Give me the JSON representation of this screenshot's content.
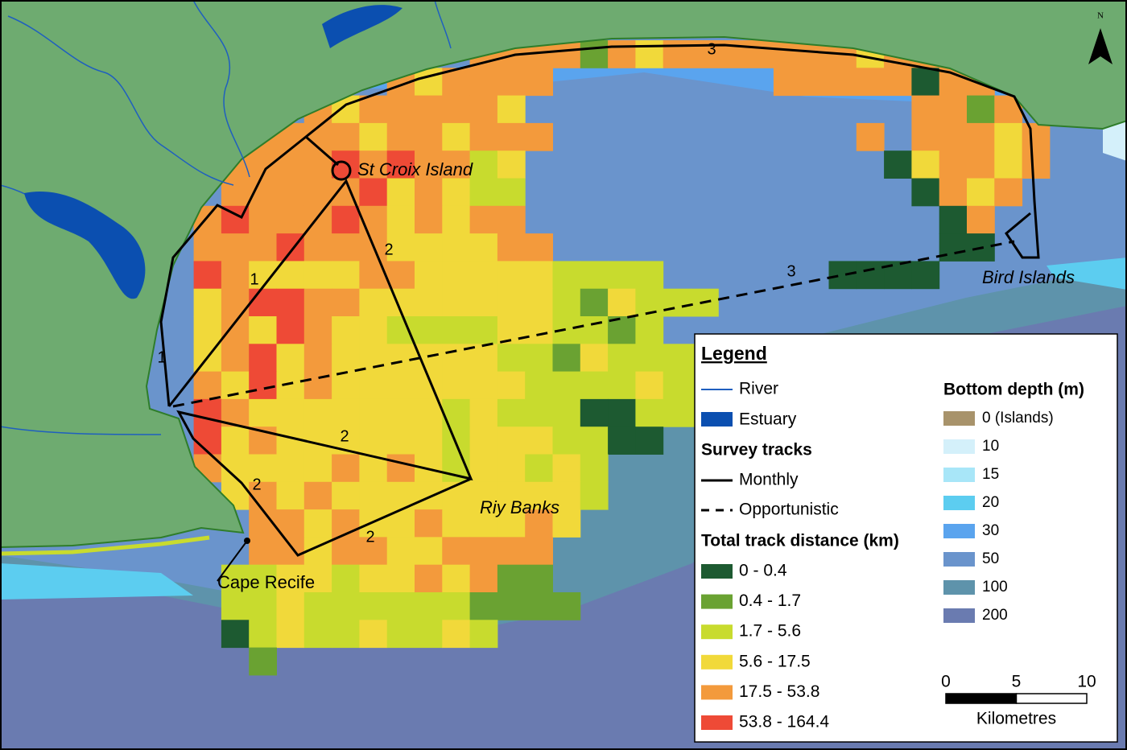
{
  "map": {
    "north": "N",
    "places": [
      "St Croix Island",
      "Bird Islands",
      "Riy Banks",
      "Cape Recife"
    ],
    "track_labels": [
      "1",
      "1",
      "2",
      "2",
      "2",
      "2",
      "3",
      "3"
    ]
  },
  "legend": {
    "title": "Legend",
    "river": {
      "label": "River",
      "color": "#1f5fbf"
    },
    "estuary": {
      "label": "Estuary",
      "color": "#0b4fb0"
    },
    "survey_tracks": {
      "title": "Survey tracks",
      "items": [
        "Monthly",
        "Opportunistic"
      ]
    },
    "track_distance": {
      "title": "Total track distance (km)",
      "items": [
        {
          "label": "0 - 0.4",
          "color": "#1d5a31"
        },
        {
          "label": "0.4 - 1.7",
          "color": "#6aa232"
        },
        {
          "label": "1.7 - 5.6",
          "color": "#c8db2e"
        },
        {
          "label": "5.6 - 17.5",
          "color": "#f1d93a"
        },
        {
          "label": "17.5 - 53.8",
          "color": "#f39a3c"
        },
        {
          "label": "53.8 - 164.4",
          "color": "#ee4a36"
        }
      ]
    },
    "bottom_depth": {
      "title": "Bottom depth (m)",
      "items": [
        {
          "label": "0 (Islands)",
          "color": "#a8936b"
        },
        {
          "label": "10",
          "color": "#d4f0fa"
        },
        {
          "label": "15",
          "color": "#a8e6f8"
        },
        {
          "label": "20",
          "color": "#5ccdf0"
        },
        {
          "label": "30",
          "color": "#5aa4ee"
        },
        {
          "label": "50",
          "color": "#6a94cc"
        },
        {
          "label": "100",
          "color": "#5e93ab"
        },
        {
          "label": "200",
          "color": "#6a7bb0"
        }
      ]
    },
    "scale_bar": {
      "ticks": [
        0,
        5,
        10
      ],
      "unit": "Kilometres"
    }
  }
}
